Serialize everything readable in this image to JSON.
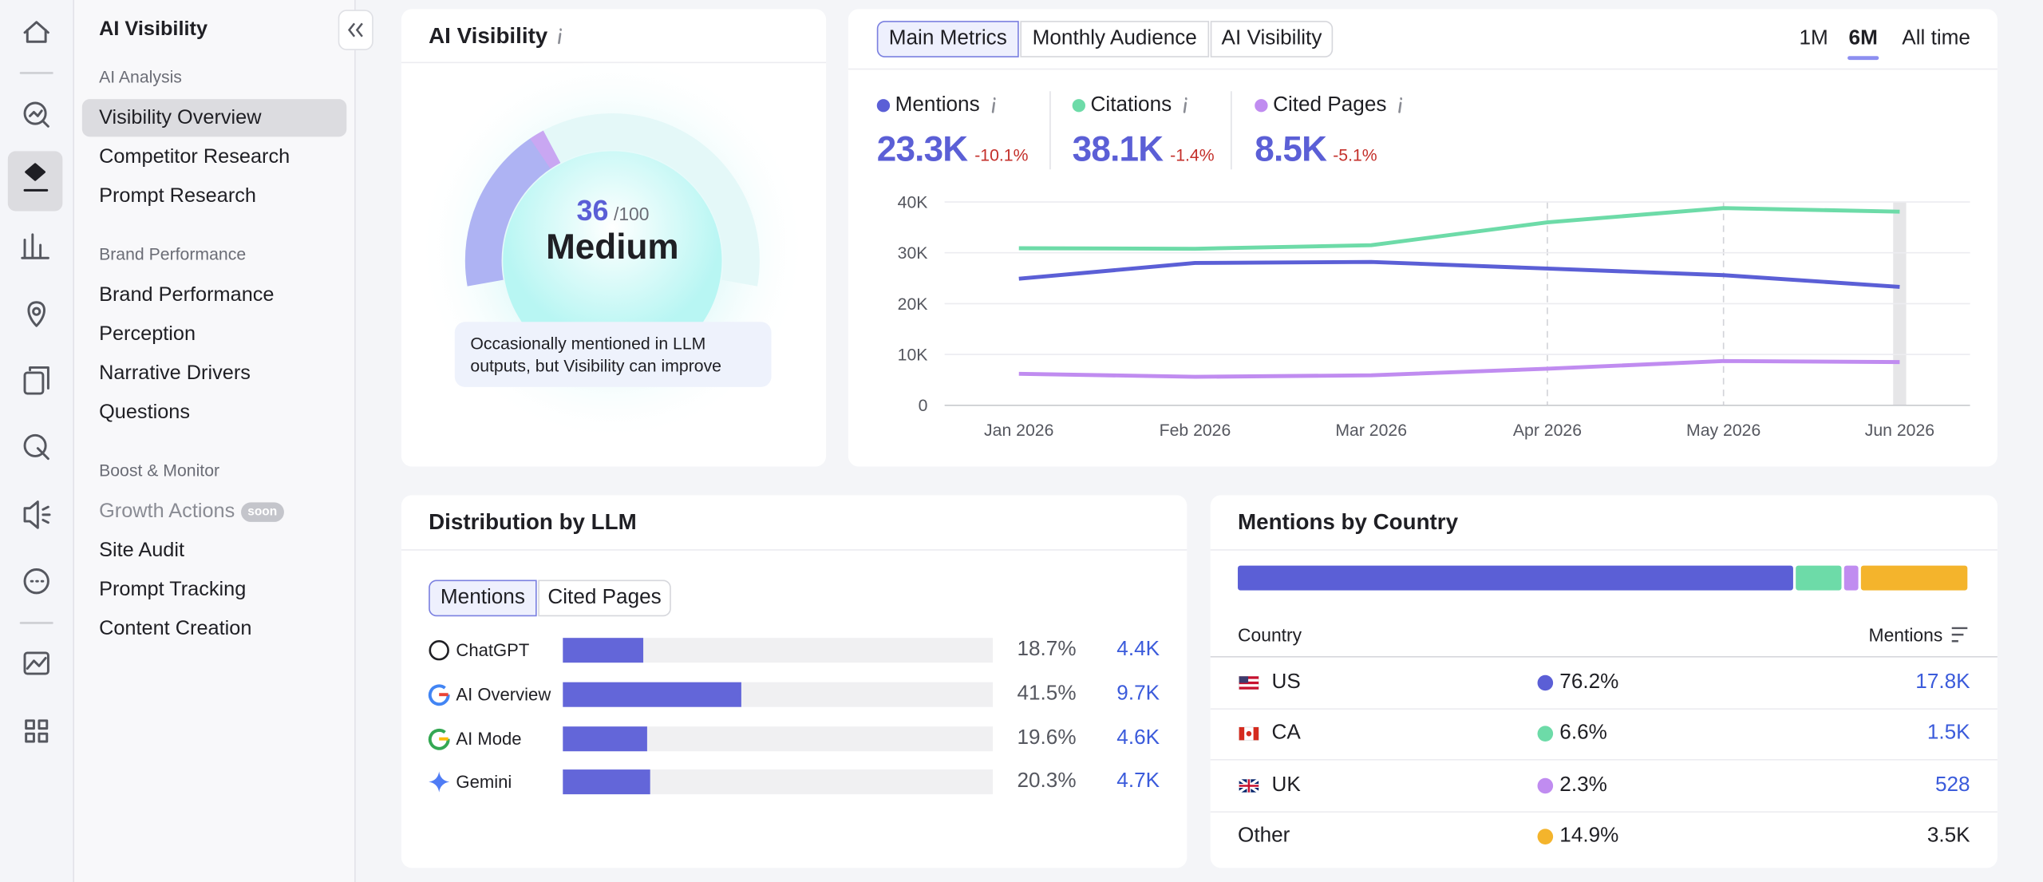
{
  "sidebar": {
    "title": "AI Visibility",
    "sections": [
      {
        "heading": "AI Analysis",
        "items": [
          {
            "label": "Visibility Overview",
            "active": true
          },
          {
            "label": "Competitor Research"
          },
          {
            "label": "Prompt Research"
          }
        ]
      },
      {
        "heading": "Brand Performance",
        "items": [
          {
            "label": "Brand Performance"
          },
          {
            "label": "Perception"
          },
          {
            "label": "Narrative Drivers"
          },
          {
            "label": "Questions"
          }
        ]
      },
      {
        "heading": "Boost & Monitor",
        "items": [
          {
            "label": "Growth Actions",
            "badge": "soon",
            "disabled": true
          },
          {
            "label": "Site Audit"
          },
          {
            "label": "Prompt Tracking"
          },
          {
            "label": "Content Creation"
          }
        ]
      }
    ]
  },
  "visibility": {
    "title": "AI Visibility",
    "score": 36,
    "score_max": {
      "value": 100,
      "label": "/100"
    },
    "level": "Medium",
    "description": "Occasionally mentioned in LLM outputs, but Visibility can improve"
  },
  "metrics": {
    "tabs": [
      {
        "label": "Main Metrics",
        "active": true
      },
      {
        "label": "Monthly Audience"
      },
      {
        "label": "AI Visibility"
      }
    ],
    "periods": [
      {
        "label": "1M"
      },
      {
        "label": "6M",
        "active": true
      },
      {
        "label": "All time"
      }
    ],
    "items": [
      {
        "value": "23.3K",
        "change": "-10.1%"
      },
      {
        "value": "38.1K",
        "change": "-1.4%"
      },
      {
        "value": "8.5K",
        "change": "-5.1%"
      }
    ]
  },
  "chart_data": {
    "type": "line",
    "categories": [
      "Jan 2026",
      "Feb 2026",
      "Mar 2026",
      "Apr 2026",
      "May 2026",
      "Jun 2026"
    ],
    "series": [
      {
        "name": "Mentions",
        "color": "#5b5fd6",
        "values": [
          24900,
          28000,
          28200,
          26900,
          25600,
          23300
        ]
      },
      {
        "name": "Citations",
        "color": "#6ddba8",
        "values": [
          30900,
          30800,
          31500,
          36000,
          38800,
          38100
        ]
      },
      {
        "name": "Cited Pages",
        "color": "#c08cf0",
        "values": [
          6200,
          5600,
          5900,
          7200,
          8700,
          8500
        ]
      }
    ],
    "ylim": [
      0,
      40000
    ],
    "yticks": [
      0,
      {
        "value": 10000,
        "label": "10K"
      },
      {
        "value": 20000,
        "label": "20K"
      },
      {
        "value": 30000,
        "label": "30K"
      },
      {
        "value": 40000,
        "label": "40K"
      }
    ],
    "grid": true
  },
  "distribution": {
    "title": "Distribution by LLM",
    "tabs": [
      {
        "label": "Mentions",
        "active": true
      },
      {
        "label": "Cited Pages"
      }
    ],
    "xlim": [
      0,
      100
    ],
    "color": "#6366d9",
    "rows": [
      {
        "name": "ChatGPT",
        "share": 18.7,
        "share_label": "18.7%",
        "mentions": "4.4K"
      },
      {
        "name": "AI Overview",
        "share": 41.5,
        "share_label": "41.5%",
        "mentions": "9.7K"
      },
      {
        "name": "AI Mode",
        "share": 19.6,
        "share_label": "19.6%",
        "mentions": "4.6K"
      },
      {
        "name": "Gemini",
        "share": 20.3,
        "share_label": "20.3%",
        "mentions": "4.7K"
      }
    ]
  },
  "countries": {
    "title": "Mentions by Country",
    "columns": [
      "Country",
      "Mentions"
    ],
    "xlim": [
      0,
      100
    ],
    "rows": [
      {
        "code": "US",
        "color": "#5b5fd6",
        "share": 76.2,
        "share_label": "76.2%",
        "mentions": "17.8K",
        "link": true
      },
      {
        "code": "CA",
        "color": "#6ddba8",
        "share": 6.6,
        "share_label": "6.6%",
        "mentions": "1.5K",
        "link": true
      },
      {
        "code": "UK",
        "color": "#c08cf0",
        "share": 2.3,
        "share_label": "2.3%",
        "mentions": "528",
        "link": true
      },
      {
        "code": "Other",
        "color": "#f4b42c",
        "share": 14.9,
        "share_label": "14.9%",
        "mentions": "3.5K",
        "link": false
      }
    ]
  }
}
